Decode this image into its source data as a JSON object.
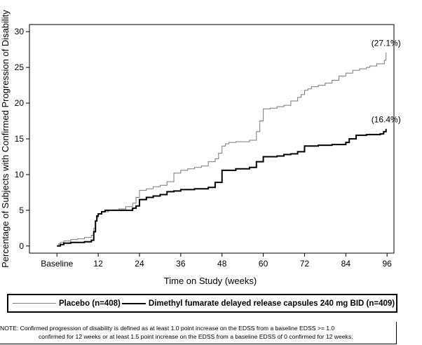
{
  "chart_data": {
    "type": "line",
    "step": true,
    "xlabel": "Time on Study (weeks)",
    "ylabel": "Percentage of Subjects with Confirmed Progression of Disability",
    "xlim": [
      -8,
      98
    ],
    "ylim": [
      -1,
      31
    ],
    "x_ticks": [
      {
        "value": 0,
        "label": "Baseline"
      },
      {
        "value": 12,
        "label": "12"
      },
      {
        "value": 24,
        "label": "24"
      },
      {
        "value": 36,
        "label": "36"
      },
      {
        "value": 48,
        "label": "48"
      },
      {
        "value": 60,
        "label": "60"
      },
      {
        "value": 72,
        "label": "72"
      },
      {
        "value": 84,
        "label": "84"
      },
      {
        "value": 96,
        "label": "96"
      }
    ],
    "y_ticks": [
      0,
      5,
      10,
      15,
      20,
      25,
      30
    ],
    "grid": false,
    "legend_position": "bottom",
    "series": [
      {
        "name": "Placebo (n=408)",
        "color": "#7a7a7a",
        "line_style": "thin",
        "end_label": "(27.1%)",
        "x": [
          0,
          0.5,
          1,
          2,
          4,
          6,
          8,
          10,
          10.7,
          11.2,
          11.6,
          12,
          13,
          15,
          16,
          17,
          18,
          20,
          22,
          23,
          24,
          26,
          28,
          30,
          32,
          34,
          36,
          38,
          40,
          42,
          44,
          46,
          47,
          48,
          49,
          50,
          52,
          56,
          58,
          59,
          60,
          62,
          64,
          66,
          68,
          70,
          71,
          72,
          73,
          74,
          76,
          78,
          80,
          82,
          84,
          86,
          88,
          90,
          91,
          93,
          95.2,
          95.7
        ],
        "y": [
          0,
          0.3,
          0.5,
          0.7,
          0.9,
          1.0,
          1.2,
          1.5,
          2.5,
          3.5,
          4.0,
          4.5,
          4.8,
          5.0,
          5.0,
          5.0,
          5.2,
          5.5,
          6.0,
          6.8,
          7.8,
          8.0,
          8.3,
          8.5,
          9.0,
          10.2,
          10.6,
          10.8,
          11.0,
          11.2,
          11.8,
          12.2,
          13.0,
          14.0,
          14.3,
          14.5,
          14.6,
          14.8,
          16.0,
          17.5,
          19.2,
          19.3,
          19.5,
          19.7,
          20.3,
          20.8,
          21.2,
          21.8,
          22.0,
          22.3,
          22.5,
          22.8,
          23.2,
          23.8,
          24.2,
          24.6,
          24.8,
          25.0,
          25.2,
          25.5,
          26.0,
          27.1
        ]
      },
      {
        "name": "Dimethyl fumarate delayed release capsules 240 mg BID (n=409)",
        "color": "#000000",
        "line_style": "thick",
        "end_label": "(16.4%)",
        "x": [
          0,
          1,
          2,
          4,
          6,
          8,
          10,
          10.7,
          11.2,
          11.6,
          12,
          13,
          14,
          16,
          20,
          22,
          23,
          24,
          26,
          28,
          30,
          32,
          34,
          36,
          40,
          44,
          46,
          48,
          52,
          56,
          58,
          60,
          64,
          66,
          68,
          70,
          72,
          76,
          80,
          84,
          85,
          87,
          90,
          94,
          95,
          95.7
        ],
        "y": [
          0,
          0.2,
          0.4,
          0.5,
          0.5,
          0.6,
          0.8,
          2.0,
          3.5,
          4.2,
          4.5,
          4.8,
          5.0,
          5.0,
          5.0,
          5.3,
          5.6,
          6.5,
          6.8,
          7.0,
          7.2,
          7.6,
          7.7,
          7.9,
          8.0,
          8.2,
          8.9,
          10.6,
          10.8,
          11.0,
          11.8,
          12.5,
          12.6,
          12.8,
          12.9,
          13.2,
          14.0,
          14.1,
          14.2,
          14.5,
          15.0,
          15.5,
          15.6,
          15.7,
          16.0,
          16.4
        ]
      }
    ],
    "note": {
      "line1": "NOTE: Confirmed progression of disability is defined as at least 1.0 point increase on the EDSS from a baseline EDSS >= 1.0",
      "line2": "confirmed for 12 weeks or at least 1.5 point increase on the EDSS from a baseline EDSS of 0 confirmed for 12 weeks."
    }
  }
}
